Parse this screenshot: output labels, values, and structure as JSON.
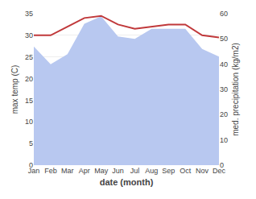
{
  "chart_data": {
    "type": "line",
    "xlabel": "date (month)",
    "ylabel": "max temp (C)",
    "y2label": "med. precipitation (kg/m2)",
    "categories": [
      "Jan",
      "Feb",
      "Mar",
      "Apr",
      "May",
      "Jun",
      "Jul",
      "Aug",
      "Sep",
      "Oct",
      "Nov",
      "Dec"
    ],
    "series": [
      {
        "type": "area",
        "axis": "y2",
        "color": "#b8c8f0",
        "values": [
          47.0,
          40.0,
          44.0,
          56.0,
          59.0,
          51.0,
          50.0,
          54.0,
          54.0,
          54.0,
          46.0,
          43.0
        ]
      },
      {
        "type": "line",
        "color": "#c0383a",
        "values": [
          30.0,
          30.0,
          32.0,
          34.0,
          34.5,
          32.5,
          31.5,
          32.0,
          32.5,
          32.5,
          30.0,
          29.5
        ]
      }
    ],
    "ylim": [
      0,
      35
    ],
    "yticks": [
      0,
      5,
      10,
      15,
      20,
      25,
      30,
      35
    ],
    "y2lim": [
      0,
      60
    ],
    "y2ticks": [
      0,
      10,
      20,
      30,
      40,
      50,
      60
    ],
    "grid": true
  }
}
